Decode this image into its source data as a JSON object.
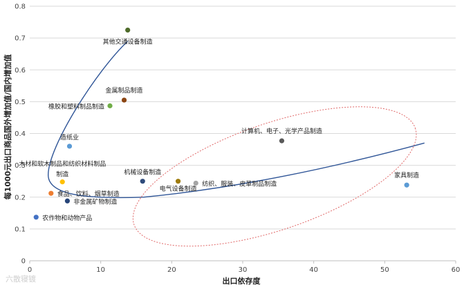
{
  "chart_data": {
    "type": "scatter",
    "title": "",
    "xlabel": "出口依存度",
    "ylabel": "每1000元出口商品国外增加值/国内增加值",
    "xlim": [
      0,
      60
    ],
    "ylim": [
      0,
      0.8
    ],
    "x_ticks": [
      0,
      10,
      20,
      30,
      40,
      50,
      60
    ],
    "y_ticks": [
      0,
      0.1,
      0.2,
      0.3,
      0.4,
      0.5,
      0.6,
      0.7,
      0.8
    ],
    "grid": "horizontal",
    "legend": "none",
    "points": [
      {
        "name": "其他交通设备制造",
        "x": 13.8,
        "y": 0.725,
        "color": "#4e6b2a"
      },
      {
        "name": "金属制品制造",
        "x": 13.3,
        "y": 0.505,
        "color": "#8b4513"
      },
      {
        "name": "橡胶和塑料制品制造",
        "x": 11.3,
        "y": 0.487,
        "color": "#70ad47"
      },
      {
        "name": "造纸业",
        "x": 5.6,
        "y": 0.36,
        "color": "#5b9bd5"
      },
      {
        "name": "木材和软木制品和纺织材料制品制造",
        "x": 4.6,
        "y": 0.248,
        "color": "#ffc000"
      },
      {
        "name": "食品、饮料、烟草制造",
        "x": 3.0,
        "y": 0.212,
        "color": "#ed7d31"
      },
      {
        "name": "非金属矿物制造",
        "x": 5.3,
        "y": 0.188,
        "color": "#264478"
      },
      {
        "name": "农作物和动物产品",
        "x": 0.9,
        "y": 0.137,
        "color": "#4472c4"
      },
      {
        "name": "机械设备制造",
        "x": 15.9,
        "y": 0.25,
        "color": "#2e4a7a"
      },
      {
        "name": "电气设备制造",
        "x": 20.9,
        "y": 0.25,
        "color": "#9e7b0b"
      },
      {
        "name": "纺织、服装、皮革制品制造",
        "x": 23.4,
        "y": 0.244,
        "color": "#a5a5a5"
      },
      {
        "name": "计算机、电子、光学产品制造",
        "x": 35.5,
        "y": 0.377,
        "color": "#595959"
      },
      {
        "name": "家具制造",
        "x": 53.1,
        "y": 0.238,
        "color": "#5b9bd5"
      }
    ],
    "trend_color": "#2f5597",
    "ellipse_color": "#e06666"
  },
  "watermark": "六散寝镀"
}
